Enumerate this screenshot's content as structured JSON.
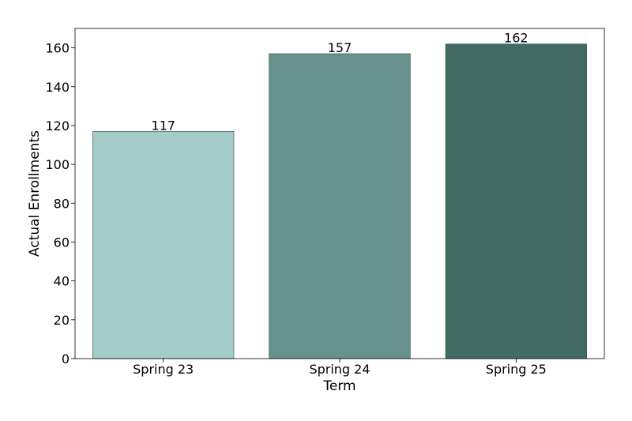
{
  "chart_data": {
    "type": "bar",
    "title": "",
    "xlabel": "Term",
    "ylabel": "Actual Enrollments",
    "categories": [
      "Spring 23",
      "Spring 24",
      "Spring 25"
    ],
    "values": [
      117,
      157,
      162
    ],
    "data_labels": [
      "117",
      "157",
      "162"
    ],
    "bar_colors": [
      "#a5cbc8",
      "#66918c",
      "#426b65"
    ],
    "ylim": [
      0,
      170
    ],
    "yticks": [
      0,
      20,
      40,
      60,
      80,
      100,
      120,
      140,
      160
    ],
    "grid": false,
    "legend": "none"
  }
}
